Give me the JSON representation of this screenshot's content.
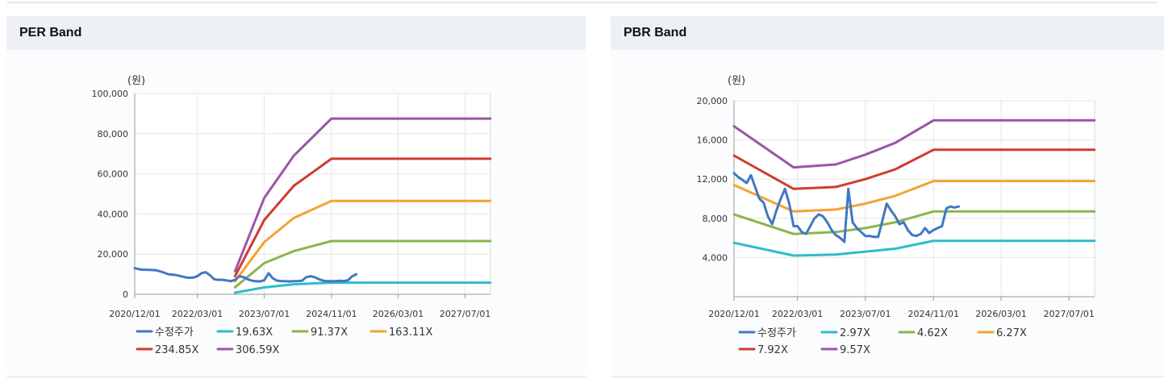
{
  "panels": [
    {
      "title": "PER Band",
      "unit_label": "(원)",
      "chart_data": {
        "type": "line",
        "title": "PER Band",
        "ylabel": "(원)",
        "xlabel": "",
        "ylim": [
          0,
          100000
        ],
        "yticks": [
          0,
          20000,
          40000,
          60000,
          80000,
          100000
        ],
        "ytick_labels": [
          "0",
          "20,000",
          "40,000",
          "60,000",
          "80,000",
          "100,000"
        ],
        "xlim": [
          "2020-12-01",
          "2028-01-01"
        ],
        "xticks": [
          "2020-12-01",
          "2022-03-01",
          "2023-07-01",
          "2024-11-01",
          "2026-03-01",
          "2027-07-01"
        ],
        "xtick_labels": [
          "2020/12/01",
          "2022/03/01",
          "2023/07/01",
          "2024/11/01",
          "2026/03/01",
          "2027/07/01"
        ],
        "grid": true,
        "legend_position": "bottom",
        "series": [
          {
            "name": "수정주가",
            "color": "#4078c4",
            "x": [
              "2020-12-01",
              "2021-01-01",
              "2021-02-01",
              "2021-03-01",
              "2021-04-01",
              "2021-05-01",
              "2021-06-01",
              "2021-07-01",
              "2021-08-01",
              "2021-09-01",
              "2021-10-01",
              "2021-11-01",
              "2021-12-01",
              "2022-01-01",
              "2022-02-01",
              "2022-03-01",
              "2022-04-01",
              "2022-05-01",
              "2022-06-01",
              "2022-07-01",
              "2022-08-01",
              "2022-09-01",
              "2022-10-01",
              "2022-11-01",
              "2022-12-01",
              "2023-01-01",
              "2023-02-01",
              "2023-03-01",
              "2023-04-01",
              "2023-05-01",
              "2023-06-01",
              "2023-07-01",
              "2023-08-01",
              "2023-09-01",
              "2023-10-01",
              "2023-11-01",
              "2023-12-01",
              "2024-01-01",
              "2024-02-01",
              "2024-03-01",
              "2024-04-01",
              "2024-05-01",
              "2024-06-01",
              "2024-07-01",
              "2024-08-01",
              "2024-09-01",
              "2024-10-01",
              "2024-11-01",
              "2024-12-01",
              "2025-01-01",
              "2025-02-01",
              "2025-03-01",
              "2025-04-01",
              "2025-05-01"
            ],
            "values": [
              13000,
              12500,
              12200,
              12200,
              12100,
              12000,
              11500,
              10800,
              10000,
              9800,
              9500,
              9000,
              8500,
              8200,
              8300,
              9000,
              10500,
              11000,
              9500,
              7500,
              7200,
              7200,
              6900,
              6500,
              7200,
              9000,
              8500,
              7500,
              6800,
              6500,
              6400,
              7000,
              10500,
              8000,
              6800,
              6600,
              6500,
              6400,
              6500,
              6600,
              6800,
              8500,
              9000,
              8500,
              7500,
              6800,
              6500,
              6500,
              6500,
              6700,
              6600,
              7000,
              9000,
              10000
            ]
          },
          {
            "name": "19.63X",
            "color": "#2ebcc8",
            "x": [
              "2022-12-01",
              "2023-07-01",
              "2024-02-01",
              "2024-11-01",
              "2027-12-31"
            ],
            "values": [
              800,
              3400,
              5000,
              5800,
              5800
            ]
          },
          {
            "name": "91.37X",
            "color": "#8bb54a",
            "x": [
              "2022-12-01",
              "2023-07-01",
              "2024-02-01",
              "2024-11-01",
              "2027-12-31"
            ],
            "values": [
              3500,
              15500,
              21500,
              26500,
              26500
            ]
          },
          {
            "name": "163.11X",
            "color": "#f5a234",
            "x": [
              "2022-12-01",
              "2023-07-01",
              "2024-02-01",
              "2024-11-01",
              "2027-12-31"
            ],
            "values": [
              6500,
              26000,
              38000,
              46500,
              46500
            ]
          },
          {
            "name": "234.85X",
            "color": "#d03b30",
            "x": [
              "2022-12-01",
              "2023-07-01",
              "2024-02-01",
              "2024-11-01",
              "2027-12-31"
            ],
            "values": [
              9000,
              37000,
              54000,
              67500,
              67500
            ]
          },
          {
            "name": "306.59X",
            "color": "#9a55a8",
            "x": [
              "2022-12-01",
              "2023-07-01",
              "2024-02-01",
              "2024-11-01",
              "2027-12-31"
            ],
            "values": [
              11500,
              48000,
              69000,
              87500,
              87500
            ]
          }
        ]
      }
    },
    {
      "title": "PBR Band",
      "unit_label": "(원)",
      "chart_data": {
        "type": "line",
        "title": "PBR Band",
        "ylabel": "(원)",
        "xlabel": "",
        "ylim": [
          0,
          20000
        ],
        "yticks": [
          4000,
          8000,
          12000,
          16000,
          20000
        ],
        "ytick_labels": [
          "4,000",
          "8,000",
          "12,000",
          "16,000",
          "20,000"
        ],
        "xlim": [
          "2020-12-01",
          "2028-01-01"
        ],
        "xticks": [
          "2020-12-01",
          "2022-03-01",
          "2023-07-01",
          "2024-11-01",
          "2026-03-01",
          "2027-07-01"
        ],
        "xtick_labels": [
          "2020/12/01",
          "2022/03/01",
          "2023/07/01",
          "2024/11/01",
          "2026/03/01",
          "2027/07/01"
        ],
        "grid": true,
        "legend_position": "bottom",
        "series": [
          {
            "name": "수정주가",
            "color": "#4078c4",
            "x": [
              "2020-12-01",
              "2021-01-01",
              "2021-02-01",
              "2021-03-01",
              "2021-04-01",
              "2021-05-01",
              "2021-06-01",
              "2021-07-01",
              "2021-08-01",
              "2021-09-01",
              "2021-10-01",
              "2021-11-01",
              "2021-12-01",
              "2022-01-01",
              "2022-02-01",
              "2022-03-01",
              "2022-04-01",
              "2022-05-01",
              "2022-06-01",
              "2022-07-01",
              "2022-08-01",
              "2022-09-01",
              "2022-10-01",
              "2022-11-01",
              "2022-12-01",
              "2023-01-01",
              "2023-02-01",
              "2023-03-01",
              "2023-04-01",
              "2023-05-01",
              "2023-06-01",
              "2023-07-01",
              "2023-08-01",
              "2023-09-01",
              "2023-10-01",
              "2023-11-01",
              "2023-12-01",
              "2024-01-01",
              "2024-02-01",
              "2024-03-01",
              "2024-04-01",
              "2024-05-01",
              "2024-06-01",
              "2024-07-01",
              "2024-08-01",
              "2024-09-01",
              "2024-10-01",
              "2024-11-01",
              "2024-12-01",
              "2025-01-01",
              "2025-02-01",
              "2025-03-01",
              "2025-04-01",
              "2025-05-01"
            ],
            "values": [
              12600,
              12200,
              11900,
              11600,
              12400,
              11200,
              10000,
              9600,
              8200,
              7400,
              8800,
              10000,
              11000,
              9500,
              7200,
              7200,
              6600,
              6400,
              7200,
              8000,
              8400,
              8200,
              7600,
              6800,
              6300,
              6000,
              5600,
              11000,
              7600,
              7000,
              6600,
              6200,
              6200,
              6100,
              6100,
              7800,
              9500,
              8800,
              8200,
              7400,
              7600,
              6800,
              6300,
              6200,
              6400,
              7000,
              6500,
              6800,
              7000,
              7200,
              9000,
              9200,
              9100,
              9200
            ]
          },
          {
            "name": "2.97X",
            "color": "#2ebcc8",
            "x": [
              "2020-12-01",
              "2022-02-01",
              "2022-12-01",
              "2023-07-01",
              "2024-02-01",
              "2024-11-01",
              "2027-12-31"
            ],
            "values": [
              5500,
              4200,
              4300,
              4600,
              4900,
              5700,
              5700
            ]
          },
          {
            "name": "4.62X",
            "color": "#8bb54a",
            "x": [
              "2020-12-01",
              "2022-02-01",
              "2022-12-01",
              "2023-07-01",
              "2024-02-01",
              "2024-11-01",
              "2027-12-31"
            ],
            "values": [
              8400,
              6400,
              6600,
              7000,
              7600,
              8700,
              8700
            ]
          },
          {
            "name": "6.27X",
            "color": "#f5a234",
            "x": [
              "2020-12-01",
              "2022-02-01",
              "2022-12-01",
              "2023-07-01",
              "2024-02-01",
              "2024-11-01",
              "2027-12-31"
            ],
            "values": [
              11400,
              8700,
              8900,
              9500,
              10300,
              11800,
              11800
            ]
          },
          {
            "name": "7.92X",
            "color": "#d03b30",
            "x": [
              "2020-12-01",
              "2022-02-01",
              "2022-12-01",
              "2023-07-01",
              "2024-02-01",
              "2024-11-01",
              "2027-12-31"
            ],
            "values": [
              14400,
              11000,
              11200,
              12000,
              13000,
              15000,
              15000
            ]
          },
          {
            "name": "9.57X",
            "color": "#9a55a8",
            "x": [
              "2020-12-01",
              "2022-02-01",
              "2022-12-01",
              "2023-07-01",
              "2024-02-01",
              "2024-11-01",
              "2027-12-31"
            ],
            "values": [
              17400,
              13200,
              13500,
              14500,
              15700,
              18000,
              18000
            ]
          }
        ]
      }
    }
  ]
}
